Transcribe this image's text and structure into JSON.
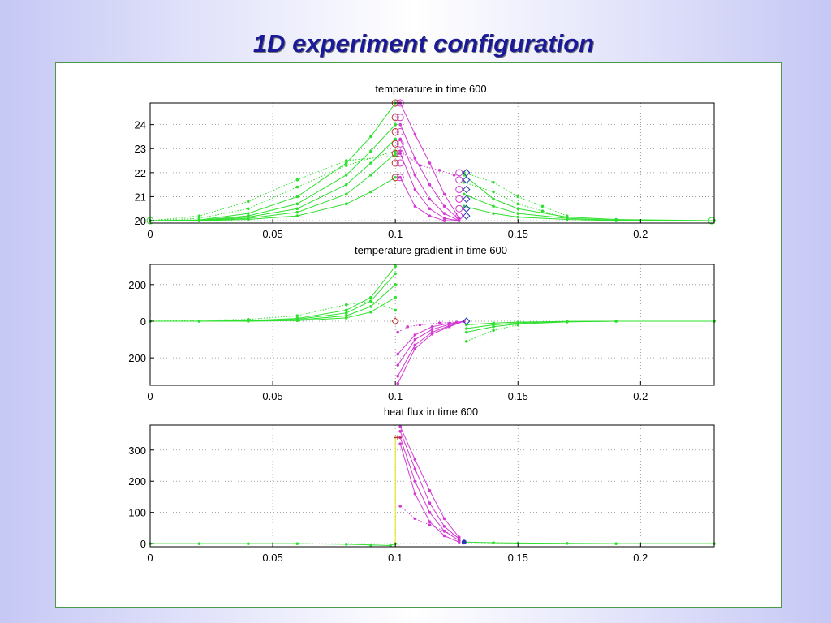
{
  "slide": {
    "title": "1D experiment configuration"
  },
  "colors": {
    "green": "#2ee02e",
    "magenta": "#d23ad2",
    "marker_red": "#c03030",
    "marker_blue": "#2a3ab0",
    "yellow": "#e0e000"
  },
  "chart_data": [
    {
      "type": "line",
      "title": "temperature in time 600",
      "xlim": [
        0,
        0.23
      ],
      "ylim": [
        19.9,
        24.9
      ],
      "xticks": [
        0,
        0.05,
        0.1,
        0.15,
        0.2
      ],
      "xticklabels": [
        "0",
        "0.05",
        "0.1",
        "0.15",
        "0.2"
      ],
      "yticks": [
        20,
        21,
        22,
        23,
        24
      ],
      "yticklabels": [
        "20",
        "21",
        "22",
        "23",
        "24"
      ],
      "grid": true,
      "series": [
        {
          "color": "green",
          "style": "solid",
          "x": [
            0,
            0.02,
            0.04,
            0.06,
            0.08,
            0.09,
            0.1
          ],
          "y": [
            20,
            20,
            20.05,
            20.2,
            20.7,
            21.2,
            21.8
          ]
        },
        {
          "color": "green",
          "style": "solid",
          "x": [
            0,
            0.02,
            0.04,
            0.06,
            0.08,
            0.09,
            0.1
          ],
          "y": [
            20,
            20,
            20.1,
            20.35,
            21.1,
            21.9,
            22.8
          ]
        },
        {
          "color": "green",
          "style": "solid",
          "x": [
            0,
            0.02,
            0.04,
            0.06,
            0.08,
            0.09,
            0.1
          ],
          "y": [
            20,
            20,
            20.15,
            20.5,
            21.5,
            22.4,
            23.4
          ]
        },
        {
          "color": "green",
          "style": "solid",
          "x": [
            0,
            0.02,
            0.04,
            0.06,
            0.08,
            0.09,
            0.1
          ],
          "y": [
            20,
            20.02,
            20.2,
            20.7,
            21.9,
            22.9,
            24.0
          ]
        },
        {
          "color": "green",
          "style": "solid",
          "x": [
            0,
            0.02,
            0.04,
            0.06,
            0.08,
            0.09,
            0.1
          ],
          "y": [
            20,
            20.03,
            20.3,
            21.0,
            22.4,
            23.5,
            24.9
          ]
        },
        {
          "color": "green",
          "style": "dotted",
          "x": [
            0,
            0.02,
            0.04,
            0.06,
            0.08,
            0.1
          ],
          "y": [
            20,
            20.1,
            20.5,
            21.4,
            22.3,
            22.9
          ]
        },
        {
          "color": "green",
          "style": "dotted",
          "x": [
            0,
            0.02,
            0.04,
            0.06,
            0.08,
            0.1
          ],
          "y": [
            20,
            20.2,
            20.8,
            21.7,
            22.5,
            22.7
          ]
        },
        {
          "color": "magenta",
          "style": "solid",
          "x": [
            0.102,
            0.108,
            0.114,
            0.12,
            0.126
          ],
          "y": [
            24.9,
            23.6,
            22.4,
            21.1,
            20.1
          ]
        },
        {
          "color": "magenta",
          "style": "solid",
          "x": [
            0.102,
            0.108,
            0.114,
            0.12,
            0.126
          ],
          "y": [
            24.0,
            22.6,
            21.5,
            20.6,
            20.05
          ]
        },
        {
          "color": "magenta",
          "style": "solid",
          "x": [
            0.102,
            0.108,
            0.114,
            0.12,
            0.126
          ],
          "y": [
            23.4,
            21.9,
            20.9,
            20.3,
            20.0
          ]
        },
        {
          "color": "magenta",
          "style": "solid",
          "x": [
            0.102,
            0.108,
            0.114,
            0.12,
            0.126
          ],
          "y": [
            22.8,
            21.3,
            20.5,
            20.1,
            20.0
          ]
        },
        {
          "color": "magenta",
          "style": "solid",
          "x": [
            0.102,
            0.108,
            0.114,
            0.12,
            0.126
          ],
          "y": [
            21.8,
            20.6,
            20.2,
            20.0,
            20.0
          ]
        },
        {
          "color": "magenta",
          "style": "dotted",
          "x": [
            0.102,
            0.11,
            0.118,
            0.124
          ],
          "y": [
            22.9,
            22.3,
            22.1,
            21.9
          ]
        },
        {
          "color": "green",
          "style": "solid",
          "x": [
            0.128,
            0.14,
            0.15,
            0.17,
            0.19,
            0.23
          ],
          "y": [
            21.9,
            20.9,
            20.5,
            20.15,
            20.05,
            20
          ]
        },
        {
          "color": "green",
          "style": "solid",
          "x": [
            0.128,
            0.14,
            0.15,
            0.17,
            0.19,
            0.23
          ],
          "y": [
            21.1,
            20.6,
            20.3,
            20.1,
            20.02,
            20
          ]
        },
        {
          "color": "green",
          "style": "solid",
          "x": [
            0.128,
            0.14,
            0.15,
            0.17,
            0.19,
            0.23
          ],
          "y": [
            20.6,
            20.3,
            20.15,
            20.05,
            20,
            20
          ]
        },
        {
          "color": "green",
          "style": "dotted",
          "x": [
            0.128,
            0.14,
            0.15,
            0.16,
            0.17
          ],
          "y": [
            22.0,
            21.6,
            21.0,
            20.6,
            20.2
          ]
        },
        {
          "color": "green",
          "style": "dotted",
          "x": [
            0.128,
            0.14,
            0.15,
            0.16,
            0.17
          ],
          "y": [
            21.6,
            21.2,
            20.7,
            20.4,
            20.1
          ]
        }
      ],
      "markers": [
        {
          "kind": "circle",
          "color": "marker_red",
          "x": 0.1,
          "y": [
            24.9,
            24.3,
            23.7,
            23.2,
            22.8,
            22.4,
            21.8
          ]
        },
        {
          "kind": "circle",
          "color": "magenta",
          "x": 0.102,
          "y": [
            24.9,
            24.3,
            23.7,
            23.2,
            22.8,
            22.4,
            21.8
          ]
        },
        {
          "kind": "circle",
          "color": "magenta",
          "x": 0.126,
          "y": [
            22.0,
            21.7,
            21.3,
            20.9,
            20.5,
            20.2
          ]
        },
        {
          "kind": "diamond",
          "color": "marker_blue",
          "x": 0.129,
          "y": [
            22.0,
            21.7,
            21.3,
            20.9,
            20.5,
            20.2
          ]
        },
        {
          "kind": "circle",
          "color": "green",
          "x": 0,
          "y": [
            20
          ]
        },
        {
          "kind": "circle",
          "color": "green",
          "x": 0.229,
          "y": [
            20
          ]
        }
      ]
    },
    {
      "type": "line",
      "title": "temperature gradient in time 600",
      "xlim": [
        0,
        0.23
      ],
      "ylim": [
        -350,
        310
      ],
      "xticks": [
        0,
        0.05,
        0.1,
        0.15,
        0.2
      ],
      "xticklabels": [
        "0",
        "0.05",
        "0.1",
        "0.15",
        "0.2"
      ],
      "yticks": [
        -200,
        0,
        200
      ],
      "yticklabels": [
        "-200",
        "0",
        "200"
      ],
      "grid": true,
      "series": [
        {
          "color": "green",
          "style": "solid",
          "x": [
            0,
            0.02,
            0.04,
            0.06,
            0.08,
            0.09,
            0.1
          ],
          "y": [
            0,
            0,
            3,
            15,
            60,
            130,
            300
          ]
        },
        {
          "color": "green",
          "style": "solid",
          "x": [
            0,
            0.02,
            0.04,
            0.06,
            0.08,
            0.09,
            0.1
          ],
          "y": [
            0,
            0,
            2,
            10,
            45,
            110,
            260
          ]
        },
        {
          "color": "green",
          "style": "solid",
          "x": [
            0,
            0.02,
            0.04,
            0.06,
            0.08,
            0.09,
            0.1
          ],
          "y": [
            0,
            0,
            1,
            6,
            30,
            80,
            200
          ]
        },
        {
          "color": "green",
          "style": "solid",
          "x": [
            0,
            0.02,
            0.04,
            0.06,
            0.08,
            0.09,
            0.1
          ],
          "y": [
            0,
            0,
            0,
            3,
            18,
            50,
            130
          ]
        },
        {
          "color": "green",
          "style": "dotted",
          "x": [
            0,
            0.04,
            0.06,
            0.08,
            0.09,
            0.1
          ],
          "y": [
            0,
            10,
            30,
            90,
            110,
            60
          ]
        },
        {
          "color": "magenta",
          "style": "solid",
          "x": [
            0.101,
            0.108,
            0.115,
            0.122,
            0.128
          ],
          "y": [
            -340,
            -150,
            -70,
            -30,
            0
          ]
        },
        {
          "color": "magenta",
          "style": "solid",
          "x": [
            0.101,
            0.108,
            0.115,
            0.122,
            0.128
          ],
          "y": [
            -300,
            -130,
            -60,
            -25,
            0
          ]
        },
        {
          "color": "magenta",
          "style": "solid",
          "x": [
            0.101,
            0.108,
            0.115,
            0.122,
            0.128
          ],
          "y": [
            -240,
            -100,
            -45,
            -18,
            0
          ]
        },
        {
          "color": "magenta",
          "style": "solid",
          "x": [
            0.101,
            0.108,
            0.115,
            0.122,
            0.128
          ],
          "y": [
            -180,
            -75,
            -30,
            -12,
            0
          ]
        },
        {
          "color": "magenta",
          "style": "dotted",
          "x": [
            0.101,
            0.105,
            0.11,
            0.118,
            0.125
          ],
          "y": [
            -60,
            -30,
            -20,
            -10,
            -5
          ]
        },
        {
          "color": "green",
          "style": "solid",
          "x": [
            0.129,
            0.14,
            0.15,
            0.17,
            0.19,
            0.23
          ],
          "y": [
            -60,
            -30,
            -15,
            -4,
            0,
            0
          ]
        },
        {
          "color": "green",
          "style": "solid",
          "x": [
            0.129,
            0.14,
            0.15,
            0.17,
            0.19,
            0.23
          ],
          "y": [
            -40,
            -20,
            -10,
            -2,
            0,
            0
          ]
        },
        {
          "color": "green",
          "style": "solid",
          "x": [
            0.129,
            0.14,
            0.15,
            0.17,
            0.19,
            0.23
          ],
          "y": [
            -20,
            -10,
            -5,
            -1,
            0,
            0
          ]
        },
        {
          "color": "green",
          "style": "dotted",
          "x": [
            0.129,
            0.14,
            0.15
          ],
          "y": [
            -110,
            -50,
            -20
          ]
        }
      ],
      "markers": [
        {
          "kind": "diamond",
          "color": "marker_red",
          "x": 0.1,
          "y": [
            0
          ]
        },
        {
          "kind": "diamond",
          "color": "marker_blue",
          "x": 0.129,
          "y": [
            0
          ]
        }
      ]
    },
    {
      "type": "line",
      "title": "heat flux in time 600",
      "xlim": [
        0,
        0.23
      ],
      "ylim": [
        -10,
        380
      ],
      "xticks": [
        0,
        0.05,
        0.1,
        0.15,
        0.2
      ],
      "xticklabels": [
        "0",
        "0.05",
        "0.1",
        "0.15",
        "0.2"
      ],
      "yticks": [
        0,
        100,
        200,
        300
      ],
      "yticklabels": [
        "0",
        "100",
        "200",
        "300"
      ],
      "grid": true,
      "series": [
        {
          "color": "green",
          "style": "solid",
          "x": [
            0,
            0.02,
            0.04,
            0.06,
            0.08,
            0.09,
            0.098,
            0.1
          ],
          "y": [
            0,
            0,
            0,
            0,
            -2,
            -4,
            -6,
            0
          ]
        },
        {
          "color": "magenta",
          "style": "solid",
          "x": [
            0.102,
            0.108,
            0.114,
            0.12,
            0.126
          ],
          "y": [
            375,
            270,
            170,
            80,
            20
          ]
        },
        {
          "color": "magenta",
          "style": "solid",
          "x": [
            0.102,
            0.108,
            0.114,
            0.12,
            0.126
          ],
          "y": [
            360,
            240,
            130,
            55,
            15
          ]
        },
        {
          "color": "magenta",
          "style": "solid",
          "x": [
            0.102,
            0.108,
            0.114,
            0.12,
            0.126
          ],
          "y": [
            340,
            200,
            100,
            40,
            10
          ]
        },
        {
          "color": "magenta",
          "style": "solid",
          "x": [
            0.102,
            0.108,
            0.114,
            0.12,
            0.126
          ],
          "y": [
            320,
            160,
            70,
            25,
            5
          ]
        },
        {
          "color": "magenta",
          "style": "dotted",
          "x": [
            0.102,
            0.108,
            0.114,
            0.12,
            0.126
          ],
          "y": [
            120,
            80,
            60,
            40,
            20
          ]
        },
        {
          "color": "green",
          "style": "solid",
          "x": [
            0.128,
            0.14,
            0.15,
            0.17,
            0.19,
            0.23
          ],
          "y": [
            5,
            3,
            2,
            1,
            0,
            0
          ]
        }
      ],
      "markers": [
        {
          "kind": "plus",
          "color": "marker_red",
          "x": 0.101,
          "y": [
            340
          ]
        },
        {
          "kind": "dot",
          "color": "marker_blue",
          "x": 0.128,
          "y": [
            5
          ]
        }
      ],
      "vline": {
        "color": "yellow",
        "x": 0.1,
        "y": [
          0,
          340
        ]
      }
    }
  ]
}
